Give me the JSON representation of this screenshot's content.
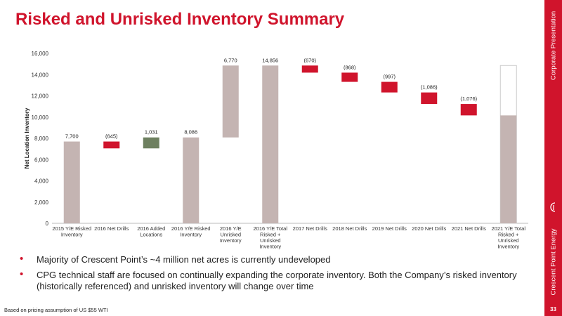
{
  "slide": {
    "title": "Risked and Unrisked Inventory Summary",
    "side_label_top": "Corporate Presentation",
    "side_label_bottom": "Crescent Point Energy",
    "page_number": "33",
    "footnote": "Based on pricing assumption of US $55 WTI",
    "bullets": [
      "Majority of Crescent Point’s ~4 million net acres is currently undeveloped",
      "CPG technical staff are focused on continually expanding the corporate inventory. Both the Company’s risked inventory (historically referenced) and unrisked inventory will change over time"
    ],
    "colors": {
      "accent": "#d0142c",
      "total": "#c4b4b2",
      "increase": "#6e8060",
      "decrease": "#d0142c",
      "outline": "#cccccc"
    },
    "logo_icon": "crescent-point-logo-icon"
  },
  "chart_data": {
    "type": "bar",
    "subtype": "waterfall",
    "ylabel": "Net Location Inventory",
    "xlabel": "",
    "ylim": [
      0,
      16000
    ],
    "yticks": [
      0,
      2000,
      4000,
      6000,
      8000,
      10000,
      12000,
      14000,
      16000
    ],
    "ytick_labels": [
      "0",
      "2,000",
      "4,000",
      "6,000",
      "8,000",
      "10,000",
      "12,000",
      "14,000",
      "16,000"
    ],
    "grid": false,
    "legend": "none",
    "categories": [
      [
        "2015 Y/E Risked",
        "Inventory"
      ],
      [
        "2016 Net Drills"
      ],
      [
        "2016 Added",
        "Locations"
      ],
      [
        "2016 Y/E Risked",
        "Inventory"
      ],
      [
        "2016 Y/E",
        "Unrisked",
        "Inventory"
      ],
      [
        "2016 Y/E Total",
        "Risked +",
        "Unrisked",
        "Inventory"
      ],
      [
        "2017 Net Drills"
      ],
      [
        "2018 Net Drills"
      ],
      [
        "2019 Net Drills"
      ],
      [
        "2020 Net Drills"
      ],
      [
        "2021 Net Drills"
      ],
      [
        "2021 Y/E Total",
        "Risked +",
        "Unrisked",
        "Inventory"
      ]
    ],
    "bars": [
      {
        "kind": "total",
        "low": 0,
        "high": 7700,
        "label": "7,700"
      },
      {
        "kind": "decrease",
        "low": 7055,
        "high": 7700,
        "label": "(645)"
      },
      {
        "kind": "increase",
        "low": 7055,
        "high": 8086,
        "label": "1,031"
      },
      {
        "kind": "total",
        "low": 0,
        "high": 8086,
        "label": "8,086"
      },
      {
        "kind": "total",
        "low": 8086,
        "high": 14856,
        "label": "6,770"
      },
      {
        "kind": "total",
        "low": 0,
        "high": 14856,
        "label": "14,856"
      },
      {
        "kind": "decrease",
        "low": 14186,
        "high": 14856,
        "label": "(670)"
      },
      {
        "kind": "decrease",
        "low": 13318,
        "high": 14186,
        "label": "(868)"
      },
      {
        "kind": "decrease",
        "low": 12321,
        "high": 13318,
        "label": "(997)"
      },
      {
        "kind": "decrease",
        "low": 11235,
        "high": 12321,
        "label": "(1,086)"
      },
      {
        "kind": "decrease",
        "low": 10159,
        "high": 11235,
        "label": "(1,076)"
      },
      {
        "kind": "total",
        "low": 0,
        "high": 10159,
        "outline_high": 14856,
        "label": ""
      }
    ]
  }
}
